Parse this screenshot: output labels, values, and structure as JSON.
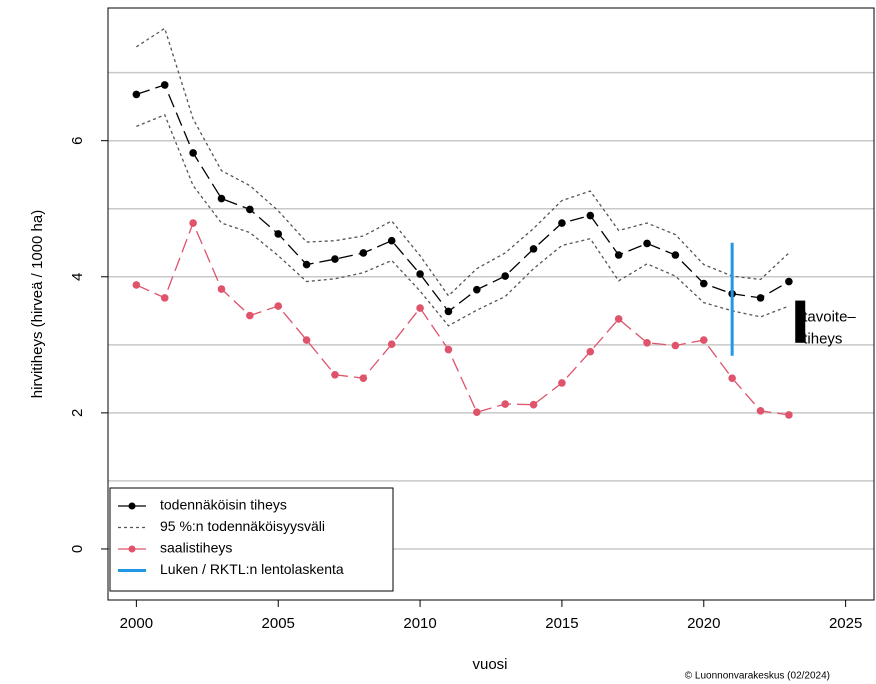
{
  "chart_data": {
    "type": "line",
    "x_label": "vuosi",
    "y_label": "hirvitiheys (hirveä / 1000 ha)",
    "credit": "© Luonnonvarakeskus (02/2024)",
    "x": [
      2000,
      2001,
      2002,
      2003,
      2004,
      2005,
      2006,
      2007,
      2008,
      2009,
      2010,
      2011,
      2012,
      2013,
      2014,
      2015,
      2016,
      2017,
      2018,
      2019,
      2020,
      2021,
      2022,
      2023
    ],
    "xlim": [
      1999,
      2026
    ],
    "xticks": [
      2000,
      2005,
      2010,
      2015,
      2020,
      2025
    ],
    "ylim": [
      -0.75,
      7.95
    ],
    "yticks": [
      0,
      2,
      4,
      6
    ],
    "ygrid": [
      0,
      1,
      2,
      3,
      4,
      5,
      6,
      7
    ],
    "legend": "bottom-left",
    "series": [
      {
        "name": "todennäköisin tiheys",
        "color": "#000000",
        "dash": "14 6",
        "marker": true,
        "values": [
          6.68,
          6.82,
          5.82,
          5.15,
          4.99,
          4.63,
          4.18,
          4.26,
          4.35,
          4.53,
          4.04,
          3.49,
          3.81,
          4.01,
          4.41,
          4.79,
          4.9,
          4.32,
          4.49,
          4.32,
          3.9,
          3.75,
          3.69,
          3.93
        ]
      },
      {
        "name": "95 %:n todennäköisyysväli",
        "color": "#555555",
        "dash": "3 3",
        "marker": false,
        "upper": [
          7.38,
          7.65,
          6.32,
          5.56,
          5.34,
          4.97,
          4.51,
          4.53,
          4.6,
          4.82,
          4.31,
          3.72,
          4.12,
          4.35,
          4.71,
          5.12,
          5.26,
          4.68,
          4.79,
          4.62,
          4.18,
          4.01,
          3.96,
          4.35
        ],
        "lower": [
          6.21,
          6.38,
          5.34,
          4.79,
          4.65,
          4.31,
          3.93,
          3.97,
          4.06,
          4.24,
          3.79,
          3.28,
          3.51,
          3.71,
          4.12,
          4.46,
          4.56,
          3.94,
          4.19,
          4.01,
          3.62,
          3.5,
          3.41,
          3.57
        ]
      },
      {
        "name": "saalistiheys",
        "color": "#DF536B",
        "dash": "14 6",
        "marker": true,
        "values": [
          3.88,
          3.69,
          4.79,
          3.82,
          3.43,
          3.57,
          3.07,
          2.56,
          2.51,
          3.01,
          3.54,
          2.93,
          2.01,
          2.13,
          2.12,
          2.44,
          2.9,
          3.38,
          3.03,
          2.99,
          3.07,
          2.51,
          2.03,
          1.97
        ]
      }
    ],
    "survey": {
      "name": "Luken / RKTL:n lentolaskenta",
      "color": "#2297E6",
      "x": 2021,
      "low": 2.84,
      "high": 4.5
    },
    "target": {
      "label": [
        "tavoite–",
        "tiheys"
      ],
      "color": "#000000",
      "x": 2023.4,
      "low": 3.03,
      "high": 3.65
    }
  }
}
